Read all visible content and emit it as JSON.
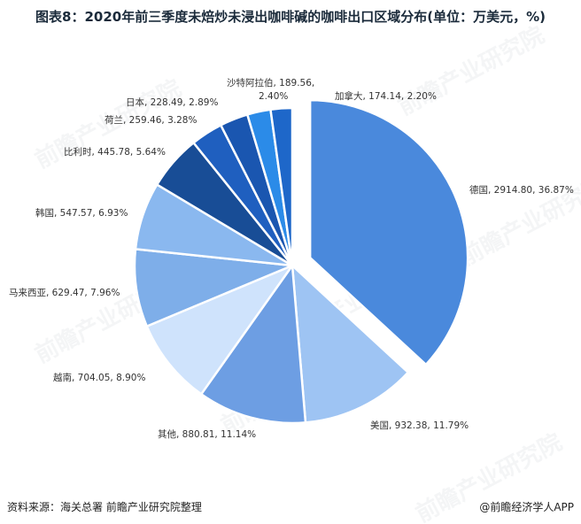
{
  "title": "图表8：2020年前三季度未焙炒未浸出咖啡碱的咖啡出口区域分布(单位：万美元，%)",
  "source": "资料来源：海关总署 前瞻产业研究院整理",
  "brand": "@前瞻经济学人APP",
  "brand_icon": "copyright-circle-icon",
  "watermark": "前瞻产业研究院",
  "chart_data": {
    "type": "pie",
    "title": "图表8：2020年前三季度未焙炒未浸出咖啡碱的咖啡出口区域分布(单位：万美元，%)",
    "start_angle_deg": 0,
    "direction": "clockwise",
    "exploded": [
      "德国"
    ],
    "slices": [
      {
        "name": "德国",
        "value": 2914.8,
        "percent": 36.87,
        "label": "德国, 2914.80, 36.87%",
        "color": "#4a89dc"
      },
      {
        "name": "美国",
        "value": 932.38,
        "percent": 11.79,
        "label": "美国, 932.38, 11.79%",
        "color": "#9ec4f3"
      },
      {
        "name": "其他",
        "value": 880.81,
        "percent": 11.14,
        "label": "其他, 880.81, 11.14%",
        "color": "#6d9ee3"
      },
      {
        "name": "越南",
        "value": 704.05,
        "percent": 8.9,
        "label": "越南, 704.05, 8.90%",
        "color": "#cfe3fc"
      },
      {
        "name": "马来西亚",
        "value": 629.47,
        "percent": 7.96,
        "label": "马来西亚, 629.47, 7.96%",
        "color": "#7eaee9"
      },
      {
        "name": "韩国",
        "value": 547.57,
        "percent": 6.93,
        "label": "韩国, 547.57, 6.93%",
        "color": "#8ab8ef"
      },
      {
        "name": "比利时",
        "value": 445.78,
        "percent": 5.64,
        "label": "比利时, 445.78, 5.64%",
        "color": "#184d96"
      },
      {
        "name": "荷兰",
        "value": 259.46,
        "percent": 3.28,
        "label": "荷兰, 259.46, 3.28%",
        "color": "#1f5fbf"
      },
      {
        "name": "日本",
        "value": 228.49,
        "percent": 2.89,
        "label": "日本, 228.49, 2.89%",
        "color": "#1a56b0"
      },
      {
        "name": "沙特阿拉伯",
        "value": 189.56,
        "percent": 2.4,
        "label": "沙特阿拉伯, 189.56, 2.40%",
        "color": "#2b8be8"
      },
      {
        "name": "加拿大",
        "value": 174.14,
        "percent": 2.2,
        "label": "加拿大, 174.14, 2.20%",
        "color": "#1e67c9"
      }
    ]
  }
}
